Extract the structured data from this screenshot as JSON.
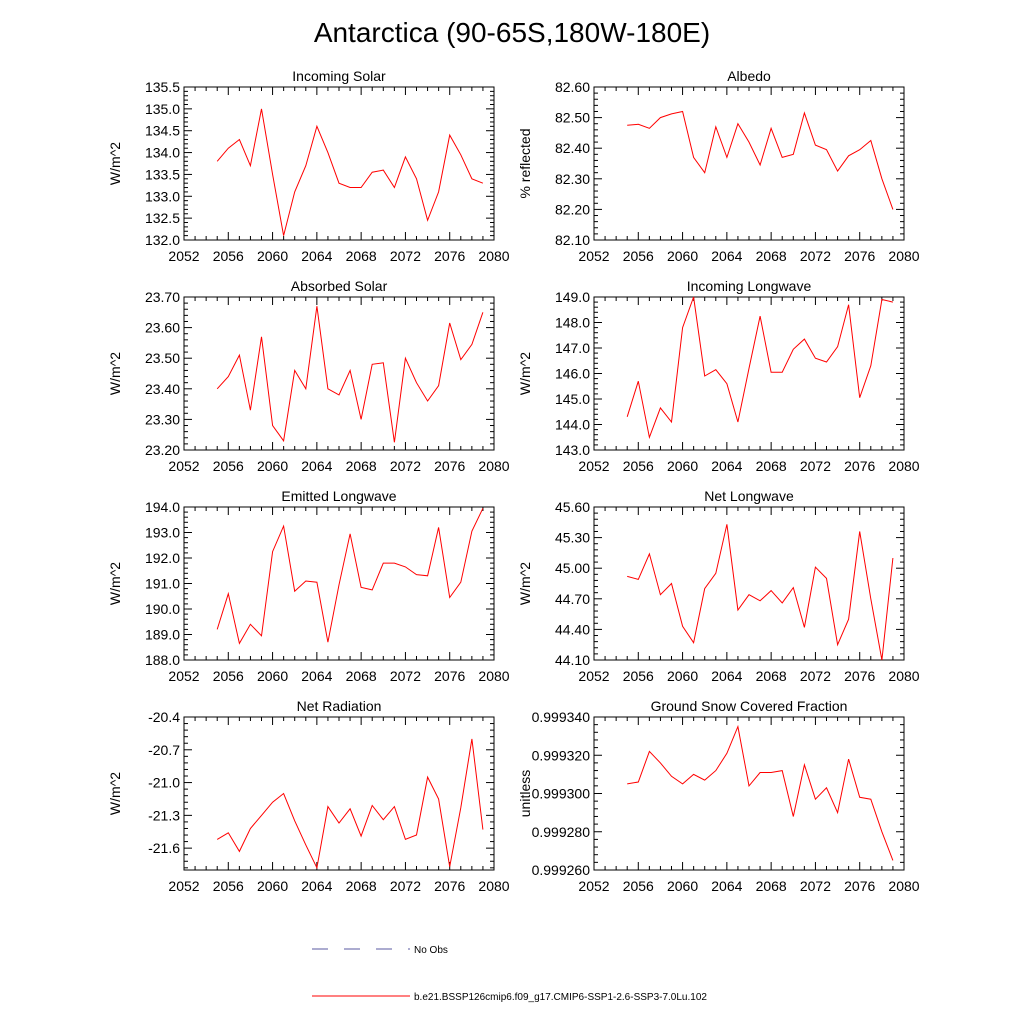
{
  "title": "Antarctica (90-65S,180W-180E)",
  "chart_data": [
    {
      "type": "line",
      "title": "Incoming Solar",
      "ylabel": "W/m^2",
      "xlim": [
        2052,
        2080
      ],
      "ylim": [
        132.0,
        135.5
      ],
      "xticks": [
        2052,
        2056,
        2060,
        2064,
        2068,
        2072,
        2076,
        2080
      ],
      "xtick_labels": [
        "2052",
        "2056",
        "2060",
        "2064",
        "2068",
        "2072",
        "2076",
        "2080"
      ],
      "yticks": [
        132.0,
        132.5,
        133.0,
        133.5,
        134.0,
        134.5,
        135.0,
        135.5
      ],
      "ytick_labels": [
        "132.0",
        "132.5",
        "133.0",
        "133.5",
        "134.0",
        "134.5",
        "135.0",
        "135.5"
      ],
      "x": [
        2055,
        2056,
        2057,
        2058,
        2059,
        2060,
        2061,
        2062,
        2063,
        2064,
        2065,
        2066,
        2067,
        2068,
        2069,
        2070,
        2071,
        2072,
        2073,
        2074,
        2075,
        2076,
        2077,
        2078,
        2079
      ],
      "series": [
        {
          "color": "#ff0000",
          "values": [
            133.8,
            134.1,
            134.3,
            133.7,
            135.0,
            133.5,
            132.1,
            133.1,
            133.7,
            134.6,
            134.0,
            133.3,
            133.2,
            133.2,
            133.55,
            133.6,
            133.2,
            133.9,
            133.4,
            132.45,
            133.1,
            134.4,
            133.95,
            133.4,
            133.3
          ]
        }
      ]
    },
    {
      "type": "line",
      "title": "Albedo",
      "ylabel": "% reflected",
      "xlim": [
        2052,
        2080
      ],
      "ylim": [
        82.1,
        82.6
      ],
      "xticks": [
        2052,
        2056,
        2060,
        2064,
        2068,
        2072,
        2076,
        2080
      ],
      "xtick_labels": [
        "2052",
        "2056",
        "2060",
        "2064",
        "2068",
        "2072",
        "2076",
        "2080"
      ],
      "yticks": [
        82.1,
        82.2,
        82.3,
        82.4,
        82.5,
        82.6
      ],
      "ytick_labels": [
        "82.10",
        "82.20",
        "82.30",
        "82.40",
        "82.50",
        "82.60"
      ],
      "x": [
        2055,
        2056,
        2057,
        2058,
        2059,
        2060,
        2061,
        2062,
        2063,
        2064,
        2065,
        2066,
        2067,
        2068,
        2069,
        2070,
        2071,
        2072,
        2073,
        2074,
        2075,
        2076,
        2077,
        2078,
        2079
      ],
      "series": [
        {
          "color": "#ff0000",
          "values": [
            82.475,
            82.478,
            82.465,
            82.5,
            82.512,
            82.52,
            82.37,
            82.32,
            82.47,
            82.37,
            82.48,
            82.42,
            82.345,
            82.465,
            82.37,
            82.38,
            82.515,
            82.41,
            82.395,
            82.325,
            82.375,
            82.395,
            82.425,
            82.3,
            82.2
          ]
        }
      ]
    },
    {
      "type": "line",
      "title": "Absorbed Solar",
      "ylabel": "W/m^2",
      "xlim": [
        2052,
        2080
      ],
      "ylim": [
        23.2,
        23.7
      ],
      "xticks": [
        2052,
        2056,
        2060,
        2064,
        2068,
        2072,
        2076,
        2080
      ],
      "xtick_labels": [
        "2052",
        "2056",
        "2060",
        "2064",
        "2068",
        "2072",
        "2076",
        "2080"
      ],
      "yticks": [
        23.2,
        23.3,
        23.4,
        23.5,
        23.6,
        23.7
      ],
      "ytick_labels": [
        "23.20",
        "23.30",
        "23.40",
        "23.50",
        "23.60",
        "23.70"
      ],
      "x": [
        2055,
        2056,
        2057,
        2058,
        2059,
        2060,
        2061,
        2062,
        2063,
        2064,
        2065,
        2066,
        2067,
        2068,
        2069,
        2070,
        2071,
        2072,
        2073,
        2074,
        2075,
        2076,
        2077,
        2078,
        2079
      ],
      "series": [
        {
          "color": "#ff0000",
          "values": [
            23.4,
            23.44,
            23.51,
            23.33,
            23.57,
            23.28,
            23.23,
            23.46,
            23.4,
            23.67,
            23.4,
            23.38,
            23.46,
            23.3,
            23.48,
            23.485,
            23.225,
            23.5,
            23.42,
            23.36,
            23.41,
            23.615,
            23.495,
            23.545,
            23.65
          ]
        }
      ]
    },
    {
      "type": "line",
      "title": "Incoming Longwave",
      "ylabel": "W/m^2",
      "xlim": [
        2052,
        2080
      ],
      "ylim": [
        143.0,
        149.0
      ],
      "xticks": [
        2052,
        2056,
        2060,
        2064,
        2068,
        2072,
        2076,
        2080
      ],
      "xtick_labels": [
        "2052",
        "2056",
        "2060",
        "2064",
        "2068",
        "2072",
        "2076",
        "2080"
      ],
      "yticks": [
        143.0,
        144.0,
        145.0,
        146.0,
        147.0,
        148.0,
        149.0
      ],
      "ytick_labels": [
        "143.0",
        "144.0",
        "145.0",
        "146.0",
        "147.0",
        "148.0",
        "149.0"
      ],
      "x": [
        2055,
        2056,
        2057,
        2058,
        2059,
        2060,
        2061,
        2062,
        2063,
        2064,
        2065,
        2066,
        2067,
        2068,
        2069,
        2070,
        2071,
        2072,
        2073,
        2074,
        2075,
        2076,
        2077,
        2078,
        2079
      ],
      "series": [
        {
          "color": "#ff0000",
          "values": [
            144.3,
            145.7,
            143.5,
            144.65,
            144.1,
            147.8,
            149.0,
            145.9,
            146.15,
            145.6,
            144.1,
            146.2,
            148.25,
            146.05,
            146.05,
            146.95,
            147.35,
            146.6,
            146.45,
            147.05,
            148.7,
            145.05,
            146.3,
            148.9,
            148.8
          ]
        }
      ]
    },
    {
      "type": "line",
      "title": "Emitted Longwave",
      "ylabel": "W/m^2",
      "xlim": [
        2052,
        2080
      ],
      "ylim": [
        188.0,
        194.0
      ],
      "xticks": [
        2052,
        2056,
        2060,
        2064,
        2068,
        2072,
        2076,
        2080
      ],
      "xtick_labels": [
        "2052",
        "2056",
        "2060",
        "2064",
        "2068",
        "2072",
        "2076",
        "2080"
      ],
      "yticks": [
        188.0,
        189.0,
        190.0,
        191.0,
        192.0,
        193.0,
        194.0
      ],
      "ytick_labels": [
        "188.0",
        "189.0",
        "190.0",
        "191.0",
        "192.0",
        "193.0",
        "194.0"
      ],
      "x": [
        2055,
        2056,
        2057,
        2058,
        2059,
        2060,
        2061,
        2062,
        2063,
        2064,
        2065,
        2066,
        2067,
        2068,
        2069,
        2070,
        2071,
        2072,
        2073,
        2074,
        2075,
        2076,
        2077,
        2078,
        2079
      ],
      "series": [
        {
          "color": "#ff0000",
          "values": [
            189.2,
            190.6,
            188.65,
            189.4,
            188.95,
            192.25,
            193.25,
            190.7,
            191.1,
            191.05,
            188.7,
            190.95,
            192.95,
            190.85,
            190.75,
            191.8,
            191.8,
            191.65,
            191.35,
            191.3,
            193.2,
            190.45,
            191.05,
            193.05,
            193.95
          ]
        }
      ]
    },
    {
      "type": "line",
      "title": "Net Longwave",
      "ylabel": "W/m^2",
      "xlim": [
        2052,
        2080
      ],
      "ylim": [
        44.1,
        45.6
      ],
      "xticks": [
        2052,
        2056,
        2060,
        2064,
        2068,
        2072,
        2076,
        2080
      ],
      "xtick_labels": [
        "2052",
        "2056",
        "2060",
        "2064",
        "2068",
        "2072",
        "2076",
        "2080"
      ],
      "yticks": [
        44.1,
        44.4,
        44.7,
        45.0,
        45.3,
        45.6
      ],
      "ytick_labels": [
        "44.10",
        "44.40",
        "44.70",
        "45.00",
        "45.30",
        "45.60"
      ],
      "x": [
        2055,
        2056,
        2057,
        2058,
        2059,
        2060,
        2061,
        2062,
        2063,
        2064,
        2065,
        2066,
        2067,
        2068,
        2069,
        2070,
        2071,
        2072,
        2073,
        2074,
        2075,
        2076,
        2077,
        2078,
        2079
      ],
      "series": [
        {
          "color": "#ff0000",
          "values": [
            44.92,
            44.89,
            45.14,
            44.74,
            44.85,
            44.43,
            44.27,
            44.8,
            44.95,
            45.43,
            44.59,
            44.74,
            44.68,
            44.78,
            44.66,
            44.81,
            44.42,
            45.01,
            44.9,
            44.25,
            44.5,
            45.36,
            44.7,
            44.1,
            45.1
          ]
        }
      ]
    },
    {
      "type": "line",
      "title": "Net Radiation",
      "ylabel": "W/m^2",
      "xlim": [
        2052,
        2080
      ],
      "ylim": [
        -21.8,
        -20.4
      ],
      "xticks": [
        2052,
        2056,
        2060,
        2064,
        2068,
        2072,
        2076,
        2080
      ],
      "xtick_labels": [
        "2052",
        "2056",
        "2060",
        "2064",
        "2068",
        "2072",
        "2076",
        "2080"
      ],
      "yticks": [
        -21.6,
        -21.3,
        -21.0,
        -20.7,
        -20.4
      ],
      "ytick_labels": [
        "-21.6",
        "-21.3",
        "-21.0",
        "-20.7",
        "-20.4"
      ],
      "x": [
        2055,
        2056,
        2057,
        2058,
        2059,
        2060,
        2061,
        2062,
        2063,
        2064,
        2065,
        2066,
        2067,
        2068,
        2069,
        2070,
        2071,
        2072,
        2073,
        2074,
        2075,
        2076,
        2077,
        2078,
        2079
      ],
      "series": [
        {
          "color": "#ff0000",
          "values": [
            -21.52,
            -21.46,
            -21.63,
            -21.42,
            -21.3,
            -21.18,
            -21.1,
            -21.35,
            -21.57,
            -21.78,
            -21.22,
            -21.37,
            -21.24,
            -21.49,
            -21.21,
            -21.34,
            -21.22,
            -21.52,
            -21.48,
            -20.95,
            -21.15,
            -21.77,
            -21.23,
            -20.6,
            -21.43
          ]
        }
      ]
    },
    {
      "type": "line",
      "title": "Ground Snow Covered Fraction",
      "ylabel": "unitless",
      "xlim": [
        2052,
        2080
      ],
      "ylim": [
        0.99926,
        0.99934
      ],
      "xticks": [
        2052,
        2056,
        2060,
        2064,
        2068,
        2072,
        2076,
        2080
      ],
      "xtick_labels": [
        "2052",
        "2056",
        "2060",
        "2064",
        "2068",
        "2072",
        "2076",
        "2080"
      ],
      "yticks": [
        0.99926,
        0.99928,
        0.9993,
        0.99932,
        0.99934
      ],
      "ytick_labels": [
        "0.999260",
        "0.999280",
        "0.999300",
        "0.999320",
        "0.999340"
      ],
      "x": [
        2055,
        2056,
        2057,
        2058,
        2059,
        2060,
        2061,
        2062,
        2063,
        2064,
        2065,
        2066,
        2067,
        2068,
        2069,
        2070,
        2071,
        2072,
        2073,
        2074,
        2075,
        2076,
        2077,
        2078,
        2079
      ],
      "series": [
        {
          "color": "#ff0000",
          "values": [
            0.999305,
            0.999306,
            0.999322,
            0.999316,
            0.999309,
            0.999305,
            0.99931,
            0.999307,
            0.999312,
            0.999321,
            0.999335,
            0.999304,
            0.999311,
            0.999311,
            0.999312,
            0.999288,
            0.999315,
            0.999297,
            0.999303,
            0.99929,
            0.999318,
            0.999298,
            0.999297,
            0.99928,
            0.999265
          ]
        }
      ]
    }
  ],
  "legend": {
    "placement": "bottom-center",
    "items": [
      {
        "label": "No Obs",
        "color": "#5a5aa0",
        "style": "dashed"
      },
      {
        "label": "b.e21.BSSP126cmip6.f09_g17.CMIP6-SSP1-2.6-SSP3-7.0Lu.102",
        "color": "#ff0000",
        "style": "solid"
      }
    ]
  }
}
